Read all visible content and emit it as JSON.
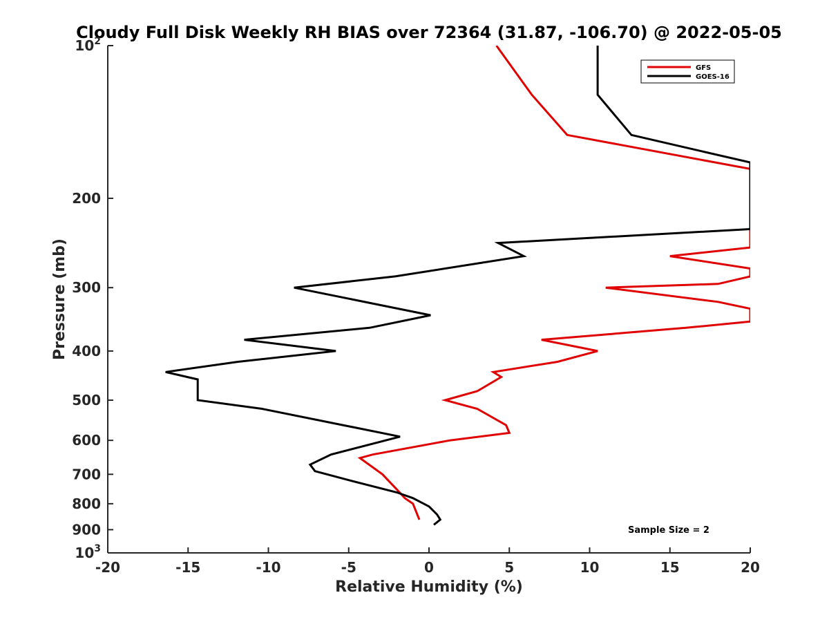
{
  "chart_data": {
    "type": "line",
    "title": "Cloudy Full Disk Weekly RH BIAS over 72364 (31.87, -106.70) @ 2022-05-05",
    "xlabel": "Relative Humidity (%)",
    "ylabel": "Pressure (mb)",
    "xlim": [
      -20,
      20
    ],
    "ylim": [
      100,
      1000
    ],
    "y_scale": "log",
    "y_reversed": true,
    "x_ticks": [
      "-20",
      "-15",
      "-10",
      "-5",
      "0",
      "5",
      "10",
      "15",
      "20"
    ],
    "y_ticks": [
      {
        "value": 100,
        "base": "10",
        "exp": "2"
      },
      {
        "value": 200,
        "label": "200"
      },
      {
        "value": 300,
        "label": "300"
      },
      {
        "value": 400,
        "label": "400"
      },
      {
        "value": 500,
        "label": "500"
      },
      {
        "value": 600,
        "label": "600"
      },
      {
        "value": 700,
        "label": "700"
      },
      {
        "value": 800,
        "label": "800"
      },
      {
        "value": 900,
        "label": "900"
      },
      {
        "value": 1000,
        "base": "10",
        "exp": "3"
      }
    ],
    "legend_position": "top-right",
    "grid": false,
    "annotation": "Sample Size = 2",
    "series": [
      {
        "name": "GFS",
        "color": "#e00000",
        "points": [
          [
            4.2,
            100
          ],
          [
            6.4,
            125
          ],
          [
            8.6,
            150
          ],
          [
            20,
            175
          ],
          [
            20,
            250
          ],
          [
            15,
            260
          ],
          [
            20,
            275
          ],
          [
            20,
            285
          ],
          [
            18,
            295
          ],
          [
            11,
            300
          ],
          [
            18,
            320
          ],
          [
            20,
            330
          ],
          [
            20,
            350
          ],
          [
            16,
            360
          ],
          [
            7,
            380
          ],
          [
            10.5,
            400
          ],
          [
            8,
            420
          ],
          [
            4,
            440
          ],
          [
            4.5,
            450
          ],
          [
            3,
            480
          ],
          [
            1,
            500
          ],
          [
            3,
            520
          ],
          [
            4.8,
            560
          ],
          [
            5,
            580
          ],
          [
            1.3,
            600
          ],
          [
            -3.5,
            640
          ],
          [
            -4.3,
            650
          ],
          [
            -2.9,
            700
          ],
          [
            -2,
            750
          ],
          [
            -1.5,
            780
          ],
          [
            -1,
            800
          ],
          [
            -0.6,
            860
          ]
        ]
      },
      {
        "name": "GOES-16",
        "color": "#000000",
        "points": [
          [
            10.5,
            100
          ],
          [
            10.5,
            125
          ],
          [
            12.6,
            150
          ],
          [
            20,
            170
          ],
          [
            20,
            230
          ],
          [
            4.3,
            245
          ],
          [
            5.9,
            260
          ],
          [
            -2.1,
            285
          ],
          [
            -8.4,
            300
          ],
          [
            0.1,
            340
          ],
          [
            -3.7,
            360
          ],
          [
            -11.5,
            380
          ],
          [
            -5.8,
            400
          ],
          [
            -11.9,
            420
          ],
          [
            -16.4,
            440
          ],
          [
            -14.4,
            455
          ],
          [
            -14.4,
            500
          ],
          [
            -10.4,
            520
          ],
          [
            -1.8,
            590
          ],
          [
            -6.1,
            640
          ],
          [
            -7.4,
            670
          ],
          [
            -7.1,
            690
          ],
          [
            -4.9,
            720
          ],
          [
            -2,
            760
          ],
          [
            -1,
            780
          ],
          [
            0,
            810
          ],
          [
            0.5,
            840
          ],
          [
            0.7,
            860
          ],
          [
            0.3,
            880
          ]
        ]
      }
    ]
  }
}
